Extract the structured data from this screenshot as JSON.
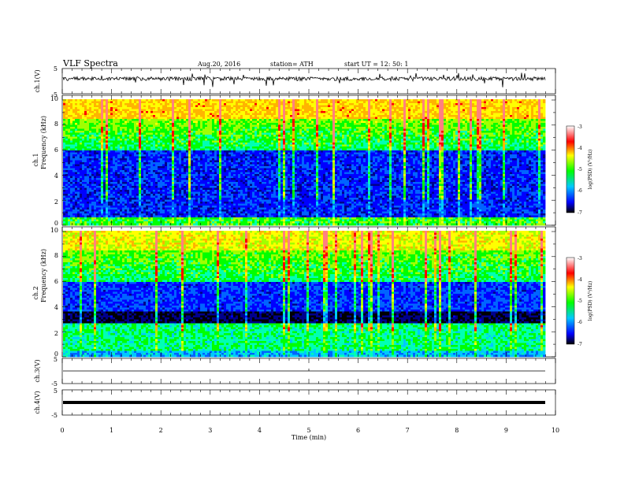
{
  "header": {
    "title": "VLF  Spectra",
    "date": "Aug.20, 2016",
    "station": "station= ATH",
    "start": "start  UT  =    12: 50: 1"
  },
  "chart_data": [
    {
      "type": "line",
      "panel": "ch1-waveform",
      "ylabel": "ch.1(V)",
      "ylim": [
        -5,
        5
      ],
      "yticks": [
        "5",
        "-5"
      ],
      "xlim": [
        0,
        10
      ],
      "baseline": 0,
      "amplitude": "noisy trace around 0 V with occasional spikes",
      "color": "#000000"
    },
    {
      "type": "heatmap",
      "panel": "ch1-spectrogram",
      "ylabel": "ch.1\nFrequency  (kHz)",
      "ylim": [
        0,
        10
      ],
      "yticks": [
        "0",
        "2",
        "4",
        "6",
        "8",
        "10"
      ],
      "xlim": [
        0,
        9.8
      ],
      "colorbar": {
        "label": "log(PSD) (V²/Hz)",
        "range": [
          -7,
          -3
        ],
        "ticks": [
          "-3",
          "-4",
          "-5",
          "-6",
          "-7"
        ],
        "colors": [
          "#000000",
          "#0000ff",
          "#00c8ff",
          "#00ff00",
          "#ffff00",
          "#ff0000",
          "#ffffff"
        ]
      },
      "bands": [
        {
          "from_khz": 6.0,
          "to_khz": 10.0,
          "level": "high (-4 to -5)"
        },
        {
          "from_khz": 0.5,
          "to_khz": 6.0,
          "level": "low (-6 to -7)"
        }
      ]
    },
    {
      "type": "heatmap",
      "panel": "ch2-spectrogram",
      "ylabel": "ch.2\nFrequency  (kHz)",
      "ylim": [
        0,
        10
      ],
      "yticks": [
        "0",
        "2",
        "4",
        "6",
        "8",
        "10"
      ],
      "xlim": [
        0,
        9.8
      ],
      "colorbar": {
        "label": "log(PSD) (V²/Hz)",
        "range": [
          -7,
          -3
        ],
        "ticks": [
          "-3",
          "-4",
          "-5",
          "-6",
          "-7"
        ],
        "colors": [
          "#000000",
          "#0000ff",
          "#00c8ff",
          "#00ff00",
          "#ffff00",
          "#ff0000",
          "#ffffff"
        ]
      },
      "bands": [
        {
          "from_khz": 6.0,
          "to_khz": 10.0,
          "level": "high (-4 to -5)"
        },
        {
          "from_khz": 3.0,
          "to_khz": 6.0,
          "level": "low (-6)"
        },
        {
          "from_khz": 2.6,
          "to_khz": 3.6,
          "level": "very low (-7)"
        },
        {
          "from_khz": 0.0,
          "to_khz": 2.6,
          "level": "medium (-5 to -6)"
        }
      ]
    },
    {
      "type": "line",
      "panel": "ch3-waveform",
      "ylabel": "ch.3(V)",
      "ylim": [
        -5,
        5
      ],
      "yticks": [
        "5",
        "-5"
      ],
      "xlim": [
        0,
        10
      ],
      "baseline": 0,
      "amplitude": "flat at 0 V",
      "color": "#000000"
    },
    {
      "type": "line",
      "panel": "ch4-waveform",
      "ylabel": "ch.4(V)",
      "ylim": [
        -5,
        5
      ],
      "yticks": [
        "5",
        "-5"
      ],
      "xlim": [
        0,
        10
      ],
      "baseline": 0,
      "amplitude": "thick band near 0 V",
      "color": "#000000"
    }
  ],
  "xaxis": {
    "label": "Time  (min)",
    "ticks": [
      "0",
      "1",
      "2",
      "3",
      "4",
      "5",
      "6",
      "7",
      "8",
      "9",
      "10"
    ]
  }
}
